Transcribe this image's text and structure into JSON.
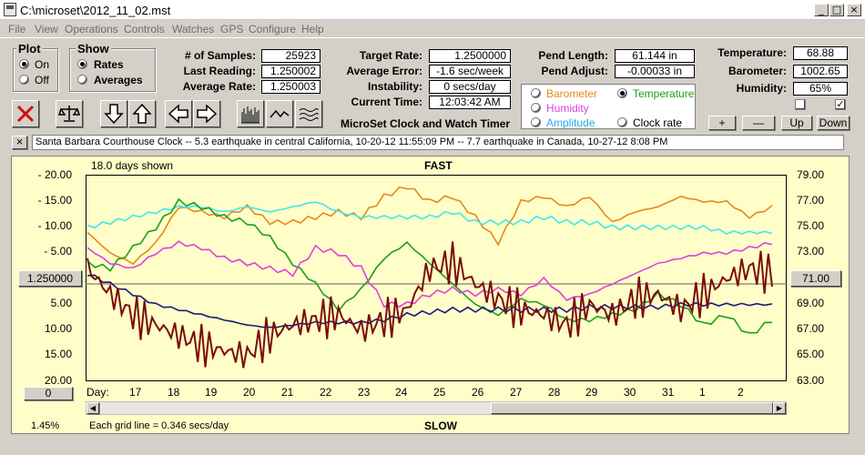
{
  "window": {
    "title": "C:\\microset\\2012_11_02.mst",
    "min": "_",
    "max": "□",
    "close": "×"
  },
  "menu": [
    "File",
    "View",
    "Operations",
    "Controls",
    "Watches",
    "GPS",
    "Configure",
    "Help"
  ],
  "plot_group": {
    "title": "Plot",
    "on": "On",
    "off": "Off",
    "selected": "On"
  },
  "show_group": {
    "title": "Show",
    "rates": "Rates",
    "averages": "Averages",
    "selected": "Rates"
  },
  "stats": {
    "samples_label": "# of Samples:",
    "samples": "25923",
    "last_label": "Last Reading:",
    "last": "1.250002",
    "avg_label": "Average Rate:",
    "avg": "1.250003",
    "target_label": "Target Rate:",
    "target": "1.2500000",
    "avgerr_label": "Average Error:",
    "avgerr": "-1.6 sec/week",
    "instab_label": "Instability:",
    "instab": "0 secs/day",
    "time_label": "Current Time:",
    "time": "12:03:42 AM",
    "pendlen_label": "Pend Length:",
    "pendlen": "61.144 in",
    "pendadj_label": "Pend Adjust:",
    "pendadj": "-0.00033 in",
    "temp_label": "Temperature:",
    "temp": "68.88",
    "baro_label": "Barometer:",
    "baro": "1002.65",
    "hum_label": "Humidity:",
    "hum": "65%"
  },
  "app_title": "MicroSet Clock and Watch Timer",
  "sensors": {
    "barometer": "Barometer",
    "temperature": "Temperature",
    "humidity": "Humidity",
    "amplitude": "Amplitude",
    "clockrate": "Clock rate",
    "selected": "Temperature",
    "colors": {
      "barometer": "#e8881c",
      "temperature": "#1aa01a",
      "humidity": "#e040e0",
      "amplitude": "#28a8e8",
      "clockrate": "#000000"
    }
  },
  "scale_buttons": {
    "plus": "+",
    "minus": "—",
    "up": "Up",
    "down": "Down"
  },
  "checkboxes": {
    "left": "",
    "right": "✓"
  },
  "ticker": {
    "close": "×",
    "text": "Santa Barbara Courthouse Clock  --  5.3 earthquake in central California, 10-20-12 11:55:09 PM  --  7.7 earthquake in Canada, 10-27-12 8:08 PM"
  },
  "chart": {
    "days_shown": "18.0 days shown",
    "fast": "FAST",
    "slow": "SLOW",
    "grid_note": "Each grid line = 0.346 secs/day",
    "percent": "1.45%",
    "center_value": "1.250000",
    "left_bottom_value": "0",
    "right_center_value": "71.00",
    "day_label": "Day:"
  },
  "chart_data": {
    "type": "line",
    "left_axis_ticks": [
      "-  20.00",
      "-  15.00",
      "-  10.00",
      "-  5.00",
      "5.00",
      "10.00",
      "15.00",
      "20.00"
    ],
    "right_axis_ticks": [
      "79.00",
      "77.00",
      "75.00",
      "73.00",
      "69.00",
      "67.00",
      "65.00",
      "63.00"
    ],
    "x_ticks": [
      "17",
      "18",
      "19",
      "20",
      "21",
      "22",
      "23",
      "24",
      "25",
      "26",
      "27",
      "28",
      "29",
      "30",
      "31",
      "1",
      "2"
    ],
    "series": [
      {
        "color": "#e8881c",
        "y": [
          10,
          6,
          4,
          8,
          15,
          14,
          13,
          15,
          12,
          12,
          13,
          14,
          13,
          17,
          19,
          16,
          17,
          13,
          8,
          16,
          17,
          15,
          17,
          12,
          14,
          15,
          17,
          16,
          16,
          13,
          15
        ]
      },
      {
        "color": "#40e8f0",
        "y": [
          11,
          12,
          13,
          14,
          15,
          15,
          14,
          15,
          14,
          15,
          16,
          14,
          13,
          13,
          13,
          13,
          14,
          12,
          12,
          12,
          13,
          12,
          12,
          11,
          11,
          11,
          11,
          11,
          10,
          10,
          10
        ]
      },
      {
        "color": "#1aa01a",
        "y": [
          4,
          3,
          7,
          11,
          16,
          15,
          13,
          12,
          9,
          4,
          0,
          -5,
          -1,
          5,
          8,
          4,
          0,
          -4,
          -6,
          -3,
          -4,
          -7,
          -7,
          -6,
          -5,
          -2,
          -4,
          -8,
          -6,
          -10,
          -7
        ]
      },
      {
        "color": "#e040e0",
        "y": [
          7,
          4,
          3,
          6,
          8,
          7,
          5,
          4,
          3,
          2,
          7,
          6,
          3,
          -4,
          -4,
          -2,
          -1,
          -2,
          -1,
          -2,
          1,
          -3,
          -2,
          0,
          2,
          4,
          5,
          6,
          6,
          7,
          8
        ]
      },
      {
        "color": "#1a1a78",
        "y": [
          2,
          0,
          -2,
          -4,
          -5,
          -6,
          -7,
          -8,
          -8.5,
          -8,
          -7.5,
          -7.5,
          -7.5,
          -7,
          -6,
          -5.5,
          -5,
          -5,
          -5,
          -5,
          -5,
          -5,
          -4.5,
          -4.5,
          -4.5,
          -4.5,
          -4,
          -4,
          -4,
          -4,
          -4
        ]
      },
      {
        "color": "#7a0c0c",
        "y": [
          3,
          -2,
          -6,
          -8,
          -10,
          -12,
          -13,
          -14,
          -10,
          -8,
          -7,
          -6,
          -9,
          -7,
          -5,
          3,
          4,
          0,
          -3,
          -5,
          -6,
          -8,
          -4,
          -6,
          -3,
          -2,
          -5,
          -2,
          1,
          3,
          2
        ]
      }
    ]
  }
}
